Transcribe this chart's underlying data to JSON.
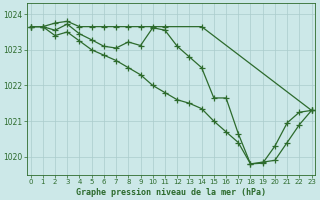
{
  "title": "Graphe pression niveau de la mer (hPa)",
  "x_ticks": [
    0,
    1,
    2,
    3,
    4,
    5,
    6,
    7,
    8,
    9,
    10,
    11,
    12,
    13,
    14,
    15,
    16,
    17,
    18,
    19,
    20,
    21,
    22,
    23
  ],
  "ylim": [
    1019.5,
    1024.3
  ],
  "xlim": [
    -0.3,
    23.3
  ],
  "yticks": [
    1020,
    1021,
    1022,
    1023,
    1024
  ],
  "bg_color": "#cce8e8",
  "grid_color": "#aacccc",
  "line_color": "#2d6b2d",
  "line1": {
    "x": [
      0,
      1,
      2,
      3,
      4,
      5,
      6,
      7,
      8,
      9,
      10,
      11,
      14,
      23
    ],
    "y": [
      1023.65,
      1023.65,
      1023.75,
      1023.8,
      1023.65,
      1023.65,
      1023.65,
      1023.65,
      1023.65,
      1023.65,
      1023.65,
      1023.65,
      1023.65,
      1021.3
    ]
  },
  "line2": {
    "x": [
      0,
      1,
      2,
      3,
      4,
      5,
      6,
      7,
      8,
      9,
      10,
      11,
      12,
      13,
      14,
      15,
      16,
      17,
      18,
      19,
      20,
      21,
      22,
      23
    ],
    "y": [
      1023.65,
      1023.65,
      1023.55,
      1023.72,
      1023.45,
      1023.28,
      1023.1,
      1023.05,
      1023.22,
      1023.12,
      1023.62,
      1023.55,
      1023.1,
      1022.8,
      1022.5,
      1021.65,
      1021.65,
      1020.65,
      1019.8,
      1019.82,
      1020.3,
      1020.95,
      1021.25,
      1021.3
    ]
  },
  "line3": {
    "x": [
      0,
      1,
      2,
      3,
      4,
      5,
      6,
      7,
      8,
      9,
      10,
      11,
      12,
      13,
      14,
      15,
      16,
      17,
      18,
      19,
      20,
      21,
      22,
      23
    ],
    "y": [
      1023.65,
      1023.65,
      1023.4,
      1023.5,
      1023.25,
      1023.0,
      1022.85,
      1022.7,
      1022.5,
      1022.3,
      1022.0,
      1021.8,
      1021.6,
      1021.5,
      1021.35,
      1021.0,
      1020.7,
      1020.4,
      1019.8,
      1019.85,
      1019.9,
      1020.4,
      1020.9,
      1021.3
    ]
  },
  "marker": "+",
  "marker_size": 4,
  "marker_edge_width": 0.9,
  "line_width": 0.9,
  "tick_fontsize": 5.0,
  "ylabel_fontsize": 5.5,
  "title_fontsize": 6.0
}
